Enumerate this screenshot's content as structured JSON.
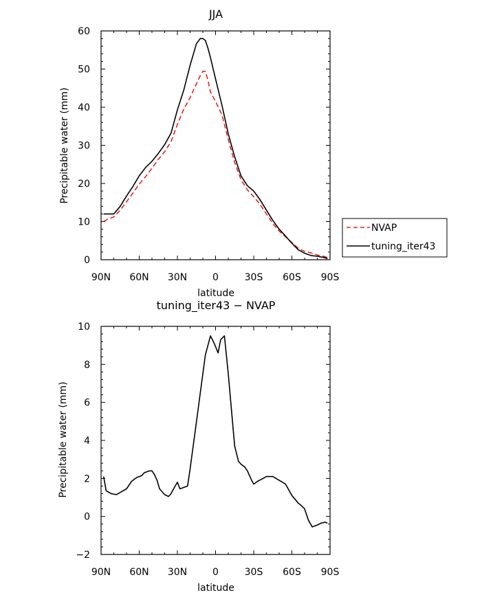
{
  "chart_data": [
    {
      "type": "line",
      "title": "JJA",
      "xlabel": "latitude",
      "ylabel": "Precipitable water (mm)",
      "xlim": [
        90,
        -90
      ],
      "ylim": [
        0,
        60
      ],
      "xticks": [
        90,
        60,
        30,
        0,
        -30,
        -60,
        -90
      ],
      "xtick_labels": [
        "90N",
        "60N",
        "30N",
        "0",
        "30S",
        "60S",
        "90S"
      ],
      "yticks": [
        0,
        10,
        20,
        30,
        40,
        50,
        60
      ],
      "ytick_labels": [
        "0",
        "10",
        "20",
        "30",
        "40",
        "50",
        "60"
      ],
      "legend": {
        "placement": "right",
        "entries": [
          "NVAP",
          "tuning_iter43"
        ]
      },
      "series": [
        {
          "name": "NVAP",
          "color": "#e8221e",
          "dash": "dashed",
          "x": [
            88,
            85,
            80,
            75,
            70,
            65,
            60,
            55,
            50,
            45,
            40,
            35,
            30,
            25,
            20,
            15,
            12,
            10,
            8,
            6,
            4,
            0,
            -5,
            -10,
            -15,
            -20,
            -25,
            -30,
            -35,
            -40,
            -45,
            -50,
            -55,
            -60,
            -65,
            -70,
            -75,
            -80,
            -85,
            -88
          ],
          "y": [
            10,
            10.6,
            11.2,
            13,
            15.2,
            17.5,
            19.8,
            21.8,
            24,
            26.3,
            28.3,
            31,
            35.5,
            39.5,
            42.5,
            46.2,
            48.3,
            49.4,
            49.4,
            47,
            44,
            41.5,
            38,
            31.5,
            25.5,
            21,
            18.3,
            16.5,
            14.5,
            12,
            9.5,
            7.5,
            6,
            4.5,
            3,
            2.2,
            1.8,
            1.2,
            0.9,
            0.6
          ]
        },
        {
          "name": "tuning_iter43",
          "color": "#000000",
          "dash": "solid",
          "x": [
            88,
            85,
            80,
            75,
            70,
            65,
            60,
            55,
            50,
            45,
            40,
            35,
            30,
            25,
            20,
            15,
            12,
            10,
            8,
            6,
            4,
            0,
            -5,
            -10,
            -15,
            -20,
            -25,
            -30,
            -35,
            -40,
            -45,
            -50,
            -55,
            -60,
            -65,
            -70,
            -75,
            -80,
            -85,
            -88
          ],
          "y": [
            12,
            12,
            12,
            14,
            16.7,
            19.2,
            22,
            24.2,
            25.8,
            27.9,
            30.2,
            33.2,
            39.3,
            44.5,
            51,
            56.7,
            58,
            58,
            57.5,
            55.5,
            53,
            47.4,
            40.5,
            33,
            27,
            22,
            19.4,
            18,
            15.7,
            13,
            10.3,
            8,
            6.2,
            4.3,
            2.6,
            1.7,
            1.1,
            0.9,
            0.6,
            0.3
          ]
        }
      ]
    },
    {
      "type": "line",
      "title": "tuning_iter43 − NVAP",
      "xlabel": "latitude",
      "ylabel": "Precipitable water (mm)",
      "xlim": [
        90,
        -90
      ],
      "ylim": [
        -2,
        10
      ],
      "xticks": [
        90,
        60,
        30,
        0,
        -30,
        -60,
        -90
      ],
      "xtick_labels": [
        "90N",
        "60N",
        "30N",
        "0",
        "30S",
        "60S",
        "90S"
      ],
      "yticks": [
        -2,
        0,
        2,
        4,
        6,
        8,
        10
      ],
      "ytick_labels": [
        "−2",
        "0",
        "2",
        "4",
        "6",
        "8",
        "10"
      ],
      "series": [
        {
          "color": "#000000",
          "dash": "solid",
          "x": [
            88,
            86,
            82,
            78,
            74,
            70,
            66,
            62,
            58,
            56,
            52,
            50,
            48,
            46,
            44,
            40,
            37,
            35,
            33,
            30,
            28,
            22,
            20,
            18,
            15,
            12,
            8,
            4,
            1,
            -2,
            -4,
            -7,
            -10,
            -15,
            -18,
            -20,
            -23,
            -25,
            -28,
            -30,
            -33,
            -36,
            -40,
            -45,
            -50,
            -55,
            -60,
            -65,
            -67,
            -70,
            -73,
            -76,
            -80,
            -83,
            -86,
            -88
          ],
          "y": [
            2.1,
            1.35,
            1.2,
            1.15,
            1.3,
            1.45,
            1.85,
            2.05,
            2.15,
            2.3,
            2.4,
            2.4,
            2.2,
            1.9,
            1.45,
            1.15,
            1.05,
            1.2,
            1.45,
            1.8,
            1.45,
            1.6,
            2.5,
            3.5,
            5.0,
            6.5,
            8.5,
            9.5,
            9.1,
            8.6,
            9.3,
            9.5,
            7.5,
            3.7,
            2.9,
            2.75,
            2.6,
            2.4,
            1.95,
            1.7,
            1.85,
            1.95,
            2.1,
            2.1,
            1.9,
            1.7,
            1.1,
            0.7,
            0.6,
            0.4,
            -0.2,
            -0.55,
            -0.45,
            -0.35,
            -0.3,
            -0.35
          ]
        }
      ]
    }
  ]
}
